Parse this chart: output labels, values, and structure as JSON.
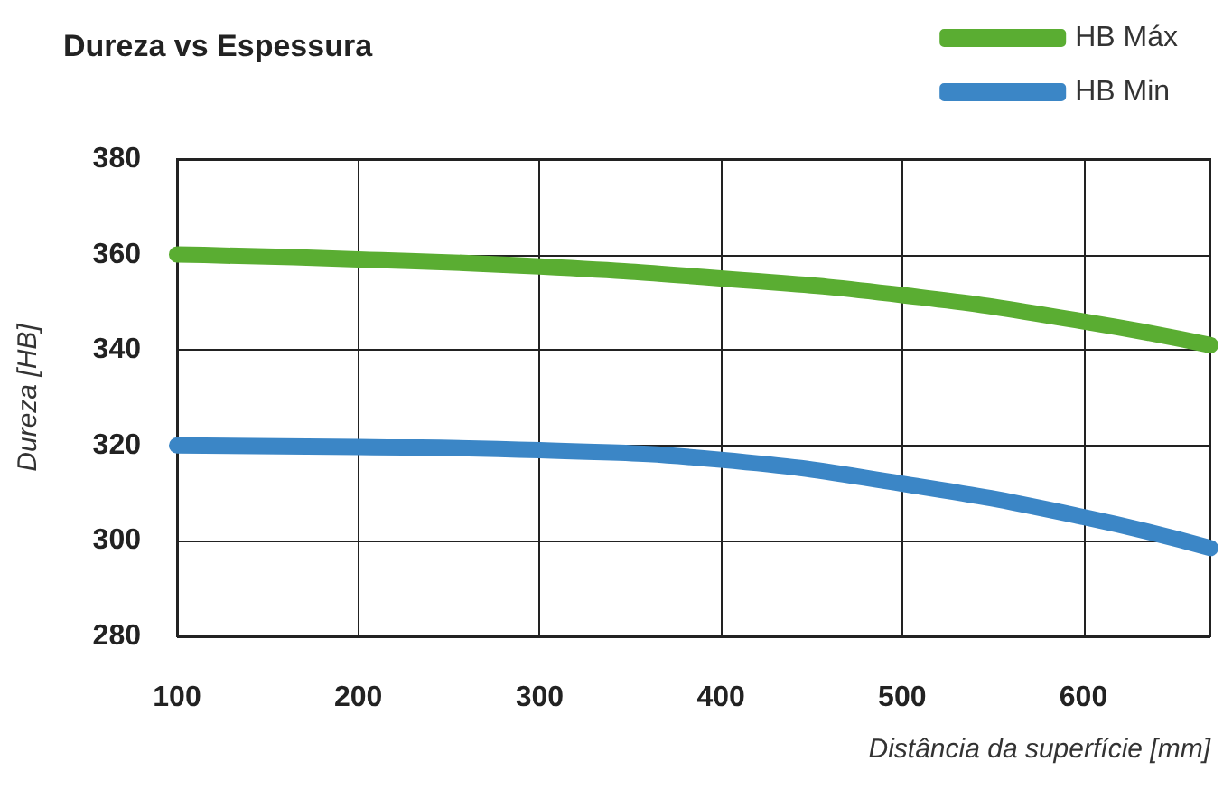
{
  "chart_data": {
    "type": "line",
    "title": "Dureza vs Espessura",
    "xlabel": "Distância da superfície [mm]",
    "ylabel": "Dureza [HB]",
    "x": [
      100,
      200,
      300,
      400,
      500,
      600,
      670
    ],
    "series": [
      {
        "name": "HB Máx",
        "color": "#5aad32",
        "values": [
          360,
          359,
          357.5,
          355,
          351.5,
          346,
          341
        ]
      },
      {
        "name": "HB Min",
        "color": "#3b86c6",
        "values": [
          320,
          319.7,
          319,
          317,
          312,
          305,
          298.5
        ]
      }
    ],
    "xlim": [
      100,
      670
    ],
    "xticks": [
      100,
      200,
      300,
      400,
      500,
      600
    ],
    "ylim": [
      280,
      380
    ],
    "yticks": [
      280,
      300,
      320,
      340,
      360,
      380
    ],
    "grid": true,
    "legend": "top right",
    "line_style": "solid"
  }
}
